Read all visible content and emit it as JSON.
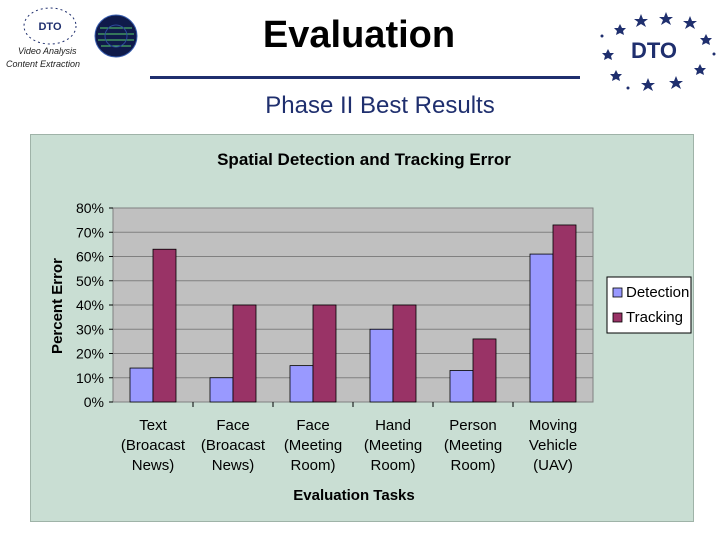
{
  "header": {
    "logo_left_text": "DTO",
    "caption_line1": "Video Analysis",
    "caption_line2": "Content Extraction",
    "title": "Evaluation",
    "logo_right_text": "DTO",
    "subtitle": "Phase II Best Results"
  },
  "colors": {
    "title_rule": "#1f2f6e",
    "panel_bg": "#c9ded3",
    "plot_bg": "#c0c0c0",
    "detection": "#9999ff",
    "tracking": "#993366"
  },
  "chart_data": {
    "type": "bar",
    "title": "Spatial Detection and Tracking Error",
    "xlabel": "Evaluation Tasks",
    "ylabel": "Percent Error",
    "ylim": [
      0,
      80
    ],
    "ytick_labels": [
      "0%",
      "10%",
      "20%",
      "30%",
      "40%",
      "50%",
      "60%",
      "70%",
      "80%"
    ],
    "grid": true,
    "legend": "right",
    "categories": [
      [
        "Text",
        "(Broacast",
        "News)"
      ],
      [
        "Face",
        "(Broacast",
        "News)"
      ],
      [
        "Face",
        "(Meeting",
        "Room)"
      ],
      [
        "Hand",
        "(Meeting",
        "Room)"
      ],
      [
        "Person",
        "(Meeting",
        "Room)"
      ],
      [
        "Moving",
        "Vehicle",
        "(UAV)"
      ]
    ],
    "series": [
      {
        "name": "Detection",
        "values": [
          14,
          10,
          15,
          30,
          13,
          61
        ]
      },
      {
        "name": "Tracking",
        "values": [
          63,
          40,
          40,
          40,
          26,
          73
        ]
      }
    ]
  }
}
